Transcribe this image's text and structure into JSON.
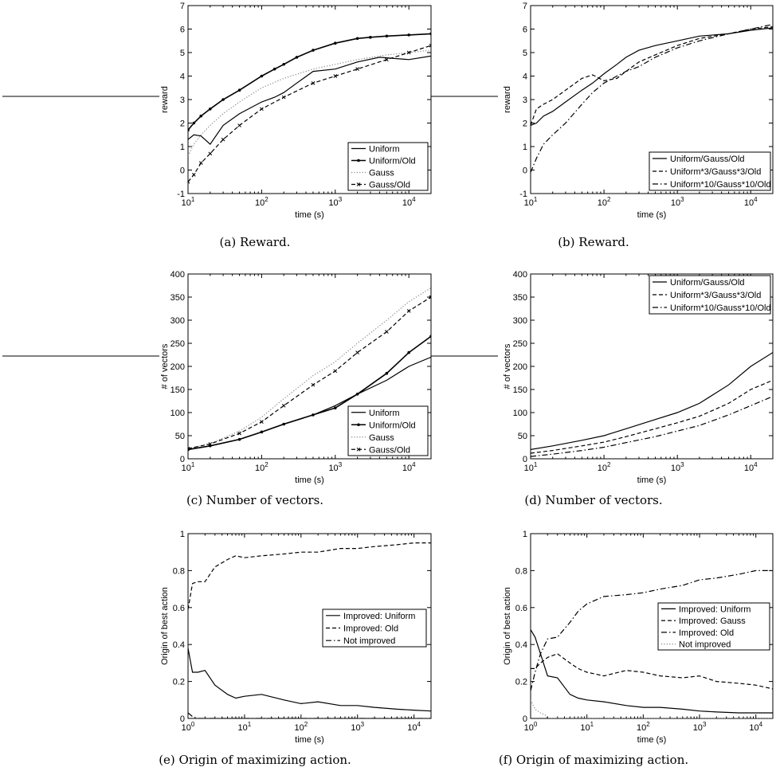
{
  "chart_data": [
    {
      "type": "line",
      "caption": "(a) Reward.",
      "xlabel": "time (s)",
      "ylabel": "reward",
      "xscale": "log",
      "xlim": [
        10,
        20000
      ],
      "ylim": [
        -1,
        7
      ],
      "yticks": [
        -1,
        0,
        1,
        2,
        3,
        4,
        5,
        6,
        7
      ],
      "xticks": [
        10,
        100,
        1000,
        10000
      ],
      "legend": "bottom-right",
      "series": [
        {
          "name": "Uniform",
          "style": "solid",
          "x": [
            10,
            12,
            15,
            20,
            30,
            50,
            100,
            150,
            200,
            300,
            500,
            1000,
            2000,
            4000,
            10000,
            20000
          ],
          "y": [
            1.3,
            1.5,
            1.45,
            1.1,
            1.9,
            2.4,
            2.9,
            3.1,
            3.3,
            3.7,
            4.2,
            4.3,
            4.6,
            4.8,
            4.7,
            4.85
          ]
        },
        {
          "name": "Uniform/Old",
          "style": "solid-dot",
          "x": [
            10,
            12,
            15,
            20,
            30,
            50,
            100,
            150,
            200,
            300,
            500,
            1000,
            2000,
            3000,
            5000,
            10000,
            20000
          ],
          "y": [
            1.7,
            2.0,
            2.3,
            2.6,
            3.0,
            3.4,
            4.0,
            4.3,
            4.5,
            4.8,
            5.1,
            5.4,
            5.6,
            5.65,
            5.7,
            5.75,
            5.8
          ]
        },
        {
          "name": "Gauss",
          "style": "dotted",
          "x": [
            10,
            12,
            15,
            20,
            30,
            50,
            100,
            200,
            500,
            1000,
            2000,
            5000,
            10000,
            20000
          ],
          "y": [
            0.6,
            1.1,
            1.5,
            1.9,
            2.4,
            2.9,
            3.5,
            3.9,
            4.3,
            4.5,
            4.7,
            4.9,
            5.0,
            5.1
          ]
        },
        {
          "name": "Gauss/Old",
          "style": "dashed-x",
          "x": [
            10,
            12,
            15,
            20,
            30,
            50,
            100,
            200,
            500,
            1000,
            2000,
            5000,
            10000,
            20000
          ],
          "y": [
            -0.5,
            -0.2,
            0.3,
            0.7,
            1.3,
            1.9,
            2.6,
            3.1,
            3.7,
            4.0,
            4.3,
            4.7,
            5.0,
            5.3
          ]
        }
      ]
    },
    {
      "type": "line",
      "caption": "(b) Reward.",
      "xlabel": "time (s)",
      "ylabel": "reward",
      "xscale": "log",
      "xlim": [
        10,
        20000
      ],
      "ylim": [
        -1,
        7
      ],
      "yticks": [
        -1,
        0,
        1,
        2,
        3,
        4,
        5,
        6,
        7
      ],
      "xticks": [
        10,
        100,
        1000,
        10000
      ],
      "legend": "bottom-right",
      "series": [
        {
          "name": "Uniform/Gauss/Old",
          "style": "solid",
          "x": [
            10,
            12,
            15,
            20,
            30,
            50,
            70,
            100,
            150,
            200,
            300,
            500,
            1000,
            2000,
            5000,
            10000,
            20000
          ],
          "y": [
            1.9,
            2.0,
            2.3,
            2.5,
            2.9,
            3.4,
            3.7,
            4.1,
            4.5,
            4.8,
            5.1,
            5.3,
            5.5,
            5.7,
            5.8,
            5.95,
            6.05
          ]
        },
        {
          "name": "Uniform*3/Gauss*3/Old",
          "style": "dashed",
          "x": [
            10,
            12,
            15,
            20,
            30,
            50,
            70,
            100,
            150,
            200,
            300,
            500,
            1000,
            2000,
            5000,
            10000,
            20000
          ],
          "y": [
            1.9,
            2.6,
            2.8,
            3.0,
            3.4,
            3.9,
            4.05,
            3.8,
            3.9,
            4.2,
            4.6,
            4.9,
            5.3,
            5.6,
            5.8,
            6.0,
            6.1
          ]
        },
        {
          "name": "Uniform*10/Gauss*10/Old",
          "style": "dashdot",
          "x": [
            10,
            12,
            15,
            20,
            30,
            50,
            70,
            100,
            150,
            200,
            300,
            500,
            1000,
            2000,
            5000,
            10000,
            20000
          ],
          "y": [
            -0.1,
            0.5,
            1.1,
            1.5,
            2.0,
            2.8,
            3.3,
            3.7,
            4.0,
            4.2,
            4.4,
            4.8,
            5.2,
            5.5,
            5.8,
            6.0,
            6.2
          ]
        }
      ]
    },
    {
      "type": "line",
      "caption": "(c) Number of vectors.",
      "xlabel": "time (s)",
      "ylabel": "# of vectors",
      "xscale": "log",
      "xlim": [
        10,
        20000
      ],
      "ylim": [
        0,
        400
      ],
      "yticks": [
        0,
        50,
        100,
        150,
        200,
        250,
        300,
        350,
        400
      ],
      "xticks": [
        10,
        100,
        1000,
        10000
      ],
      "legend": "bottom-right",
      "series": [
        {
          "name": "Uniform",
          "style": "solid",
          "x": [
            10,
            20,
            50,
            100,
            200,
            500,
            1000,
            2000,
            5000,
            10000,
            20000
          ],
          "y": [
            20,
            28,
            42,
            58,
            75,
            95,
            115,
            140,
            170,
            200,
            220
          ]
        },
        {
          "name": "Uniform/Old",
          "style": "solid-dot",
          "x": [
            10,
            20,
            50,
            100,
            200,
            500,
            1000,
            2000,
            5000,
            10000,
            20000
          ],
          "y": [
            20,
            28,
            42,
            58,
            75,
            95,
            110,
            140,
            185,
            230,
            265
          ]
        },
        {
          "name": "Gauss",
          "style": "dotted",
          "x": [
            10,
            20,
            50,
            100,
            200,
            500,
            1000,
            2000,
            5000,
            10000,
            20000
          ],
          "y": [
            22,
            33,
            60,
            90,
            130,
            180,
            210,
            250,
            300,
            340,
            370
          ]
        },
        {
          "name": "Gauss/Old",
          "style": "dashed-x",
          "x": [
            10,
            20,
            50,
            100,
            200,
            500,
            1000,
            2000,
            5000,
            10000,
            20000
          ],
          "y": [
            22,
            32,
            55,
            80,
            115,
            160,
            190,
            230,
            275,
            320,
            350
          ]
        }
      ]
    },
    {
      "type": "line",
      "caption": "(d) Number of vectors.",
      "xlabel": "time (s)",
      "ylabel": "# of vectors",
      "xscale": "log",
      "xlim": [
        10,
        20000
      ],
      "ylim": [
        0,
        400
      ],
      "yticks": [
        0,
        50,
        100,
        150,
        200,
        250,
        300,
        350,
        400
      ],
      "xticks": [
        10,
        100,
        1000,
        10000
      ],
      "legend": "top-right",
      "series": [
        {
          "name": "Uniform/Gauss/Old",
          "style": "solid",
          "x": [
            10,
            20,
            50,
            100,
            200,
            500,
            1000,
            2000,
            5000,
            10000,
            20000
          ],
          "y": [
            20,
            28,
            40,
            50,
            65,
            85,
            100,
            120,
            160,
            200,
            230
          ]
        },
        {
          "name": "Uniform*3/Gauss*3/Old",
          "style": "dashed",
          "x": [
            10,
            20,
            50,
            100,
            200,
            500,
            1000,
            2000,
            5000,
            10000,
            20000
          ],
          "y": [
            12,
            18,
            28,
            36,
            48,
            65,
            78,
            92,
            120,
            150,
            170
          ]
        },
        {
          "name": "Uniform*10/Gauss*10/Old",
          "style": "dashdot",
          "x": [
            10,
            20,
            50,
            100,
            200,
            500,
            1000,
            2000,
            5000,
            10000,
            20000
          ],
          "y": [
            5,
            10,
            18,
            25,
            35,
            48,
            60,
            72,
            95,
            115,
            135
          ]
        }
      ]
    },
    {
      "type": "line",
      "caption": "(e) Origin of maximizing action.",
      "xlabel": "time (s)",
      "ylabel": "Origin of best action",
      "xscale": "log",
      "xlim": [
        1,
        20000
      ],
      "ylim": [
        0,
        1
      ],
      "yticks": [
        0,
        0.2,
        0.4,
        0.6,
        0.8,
        1
      ],
      "xticks": [
        1,
        10,
        100,
        1000,
        10000
      ],
      "legend": "center-right",
      "series": [
        {
          "name": "Improved: Uniform",
          "style": "solid",
          "x": [
            1,
            1.2,
            1.5,
            2,
            3,
            5,
            7,
            10,
            20,
            50,
            100,
            200,
            500,
            1000,
            2000,
            5000,
            10000,
            20000
          ],
          "y": [
            0.38,
            0.25,
            0.25,
            0.26,
            0.18,
            0.13,
            0.11,
            0.12,
            0.13,
            0.1,
            0.08,
            0.09,
            0.07,
            0.07,
            0.06,
            0.05,
            0.045,
            0.04
          ]
        },
        {
          "name": "Improved: Old",
          "style": "dashed",
          "x": [
            1,
            1.2,
            1.5,
            2,
            3,
            5,
            7,
            10,
            20,
            50,
            100,
            200,
            500,
            1000,
            2000,
            5000,
            10000,
            20000
          ],
          "y": [
            0.59,
            0.73,
            0.74,
            0.74,
            0.82,
            0.86,
            0.88,
            0.87,
            0.88,
            0.89,
            0.9,
            0.9,
            0.92,
            0.92,
            0.93,
            0.94,
            0.95,
            0.95
          ]
        },
        {
          "name": "Not improved",
          "style": "dashdot",
          "x": [
            1,
            1.2,
            1.5,
            2,
            5,
            10,
            100,
            1000,
            10000,
            20000
          ],
          "y": [
            0.03,
            0.01,
            0.0,
            0.0,
            0.0,
            0.0,
            0.0,
            0.0,
            0.0,
            0.0
          ]
        }
      ]
    },
    {
      "type": "line",
      "caption": "(f) Origin of maximizing action.",
      "xlabel": "time (s)",
      "ylabel": "Origin of best action",
      "xscale": "log",
      "xlim": [
        1,
        20000
      ],
      "ylim": [
        0,
        1
      ],
      "yticks": [
        0,
        0.2,
        0.4,
        0.6,
        0.8,
        1
      ],
      "xticks": [
        1,
        10,
        100,
        1000,
        10000
      ],
      "legend": "center-right",
      "series": [
        {
          "name": "Improved: Uniform",
          "style": "solid",
          "x": [
            1,
            1.2,
            1.5,
            2,
            3,
            5,
            7,
            10,
            20,
            50,
            100,
            200,
            500,
            1000,
            2000,
            5000,
            10000,
            20000
          ],
          "y": [
            0.48,
            0.44,
            0.35,
            0.23,
            0.22,
            0.13,
            0.11,
            0.1,
            0.09,
            0.07,
            0.06,
            0.06,
            0.05,
            0.04,
            0.035,
            0.03,
            0.03,
            0.03
          ]
        },
        {
          "name": "Improved: Gauss",
          "style": "dashed",
          "x": [
            1,
            1.2,
            1.5,
            2,
            3,
            5,
            7,
            10,
            20,
            50,
            100,
            200,
            500,
            1000,
            2000,
            5000,
            10000,
            20000
          ],
          "y": [
            0.27,
            0.27,
            0.3,
            0.33,
            0.35,
            0.3,
            0.27,
            0.25,
            0.23,
            0.26,
            0.25,
            0.23,
            0.22,
            0.23,
            0.2,
            0.19,
            0.18,
            0.16
          ]
        },
        {
          "name": "Improved: Old",
          "style": "dashdot",
          "x": [
            1,
            1.2,
            1.5,
            2,
            3,
            5,
            7,
            10,
            20,
            50,
            100,
            200,
            500,
            1000,
            2000,
            5000,
            10000,
            20000
          ],
          "y": [
            0.15,
            0.25,
            0.35,
            0.43,
            0.44,
            0.52,
            0.58,
            0.62,
            0.66,
            0.67,
            0.68,
            0.7,
            0.72,
            0.75,
            0.76,
            0.78,
            0.8,
            0.8
          ]
        },
        {
          "name": "Not improved",
          "style": "dotted",
          "x": [
            1,
            1.2,
            1.5,
            1.8,
            2,
            3,
            10,
            100,
            1000,
            10000,
            20000
          ],
          "y": [
            0.1,
            0.05,
            0.03,
            0.02,
            0.0,
            0.0,
            0.0,
            0.0,
            0.0,
            0.0,
            0.0
          ]
        }
      ]
    }
  ]
}
